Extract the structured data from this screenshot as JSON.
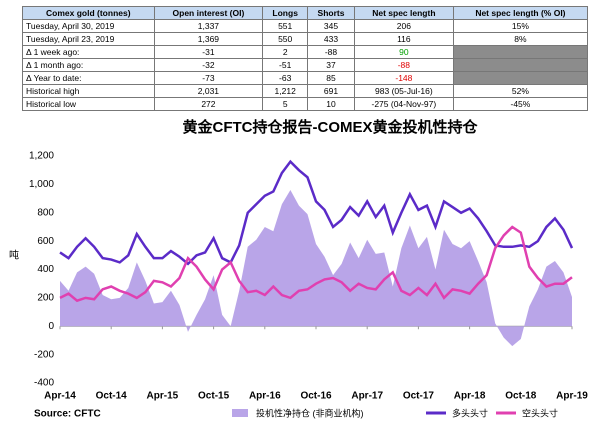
{
  "table": {
    "header": [
      "Comex gold (tonnes)",
      "Open interest (OI)",
      "Longs",
      "Shorts",
      "Net spec length",
      "Net spec length (% OI)"
    ],
    "rows": [
      [
        "Tuesday, April 30, 2019",
        "1,337",
        "551",
        "345",
        "206",
        "15%"
      ],
      [
        "Tuesday, April 23, 2019",
        "1,369",
        "550",
        "433",
        "116",
        "8%"
      ],
      [
        "Δ 1 week ago:",
        "-31",
        "2",
        "-88",
        "90"
      ],
      [
        "Δ 1 month ago:",
        "-32",
        "-51",
        "37",
        "-88"
      ],
      [
        "Δ Year to date:",
        "-73",
        "-63",
        "85",
        "-148"
      ],
      [
        "Historical high",
        "2,031",
        "1,212",
        "691",
        "983  (05-Jul-16)",
        "52%"
      ],
      [
        "Historical low",
        "272",
        "5",
        "10",
        "-275  (04-Nov-97)",
        "-45%"
      ]
    ]
  },
  "chart_data": {
    "type": "line",
    "title": "黄金CFTC持仓报告-COMEX黄金投机性持仓",
    "y_label": "吨",
    "source": "Source: CFTC",
    "x": [
      "Apr-14",
      "May-14",
      "Jun-14",
      "Jul-14",
      "Aug-14",
      "Sep-14",
      "Oct-14",
      "Nov-14",
      "Dec-14",
      "Jan-15",
      "Feb-15",
      "Mar-15",
      "Apr-15",
      "May-15",
      "Jun-15",
      "Jul-15",
      "Aug-15",
      "Sep-15",
      "Oct-15",
      "Nov-15",
      "Dec-15",
      "Jan-16",
      "Feb-16",
      "Mar-16",
      "Apr-16",
      "May-16",
      "Jun-16",
      "Jul-16",
      "Aug-16",
      "Sep-16",
      "Oct-16",
      "Nov-16",
      "Dec-16",
      "Jan-17",
      "Feb-17",
      "Mar-17",
      "Apr-17",
      "May-17",
      "Jun-17",
      "Jul-17",
      "Aug-17",
      "Sep-17",
      "Oct-17",
      "Nov-17",
      "Dec-17",
      "Jan-18",
      "Feb-18",
      "Mar-18",
      "Apr-18",
      "May-18",
      "Jun-18",
      "Jul-18",
      "Aug-18",
      "Sep-18",
      "Oct-18",
      "Nov-18",
      "Dec-18",
      "Jan-19",
      "Feb-19",
      "Mar-19",
      "Apr-19"
    ],
    "xticks": [
      "Apr-14",
      "Oct-14",
      "Apr-15",
      "Oct-15",
      "Apr-16",
      "Oct-16",
      "Apr-17",
      "Oct-17",
      "Apr-18",
      "Oct-18",
      "Apr-19"
    ],
    "ylim": [
      -400,
      1200
    ],
    "yticks": [
      -400,
      -200,
      0,
      200,
      400,
      600,
      800,
      {
        "value": 1000,
        "label": "1,000"
      },
      {
        "value": 1200,
        "label": "1,200"
      }
    ],
    "series": [
      {
        "name": "投机性净持仓 (非商业机构)",
        "kind": "area",
        "color": "#b9a5e8",
        "values": [
          320,
          250,
          380,
          420,
          370,
          220,
          190,
          200,
          270,
          450,
          320,
          160,
          170,
          250,
          150,
          -40,
          80,
          190,
          360,
          80,
          0,
          250,
          560,
          610,
          700,
          670,
          860,
          960,
          850,
          790,
          580,
          490,
          360,
          440,
          590,
          480,
          610,
          510,
          520,
          280,
          550,
          710,
          550,
          630,
          400,
          680,
          580,
          550,
          600,
          460,
          310,
          20,
          -80,
          -140,
          -90,
          140,
          260,
          420,
          460,
          380,
          206
        ]
      },
      {
        "name": "多头头寸",
        "kind": "line",
        "color": "#5b2bc8",
        "values": [
          520,
          480,
          560,
          620,
          560,
          480,
          470,
          450,
          500,
          650,
          560,
          480,
          480,
          530,
          490,
          440,
          500,
          520,
          620,
          480,
          450,
          570,
          800,
          860,
          920,
          950,
          1080,
          1160,
          1100,
          1050,
          880,
          820,
          700,
          750,
          840,
          780,
          880,
          770,
          850,
          660,
          800,
          930,
          820,
          850,
          700,
          880,
          840,
          800,
          830,
          760,
          670,
          570,
          560,
          560,
          570,
          560,
          600,
          700,
          760,
          680,
          551
        ]
      },
      {
        "name": "空头头寸",
        "kind": "line",
        "color": "#e040b0",
        "values": [
          200,
          230,
          180,
          200,
          190,
          260,
          280,
          250,
          230,
          200,
          240,
          320,
          310,
          280,
          340,
          480,
          420,
          330,
          260,
          400,
          450,
          320,
          240,
          250,
          220,
          280,
          220,
          200,
          250,
          260,
          300,
          330,
          340,
          310,
          250,
          300,
          270,
          260,
          330,
          380,
          250,
          220,
          270,
          220,
          300,
          200,
          260,
          250,
          230,
          300,
          360,
          550,
          640,
          700,
          660,
          420,
          340,
          280,
          300,
          300,
          345
        ]
      }
    ]
  }
}
